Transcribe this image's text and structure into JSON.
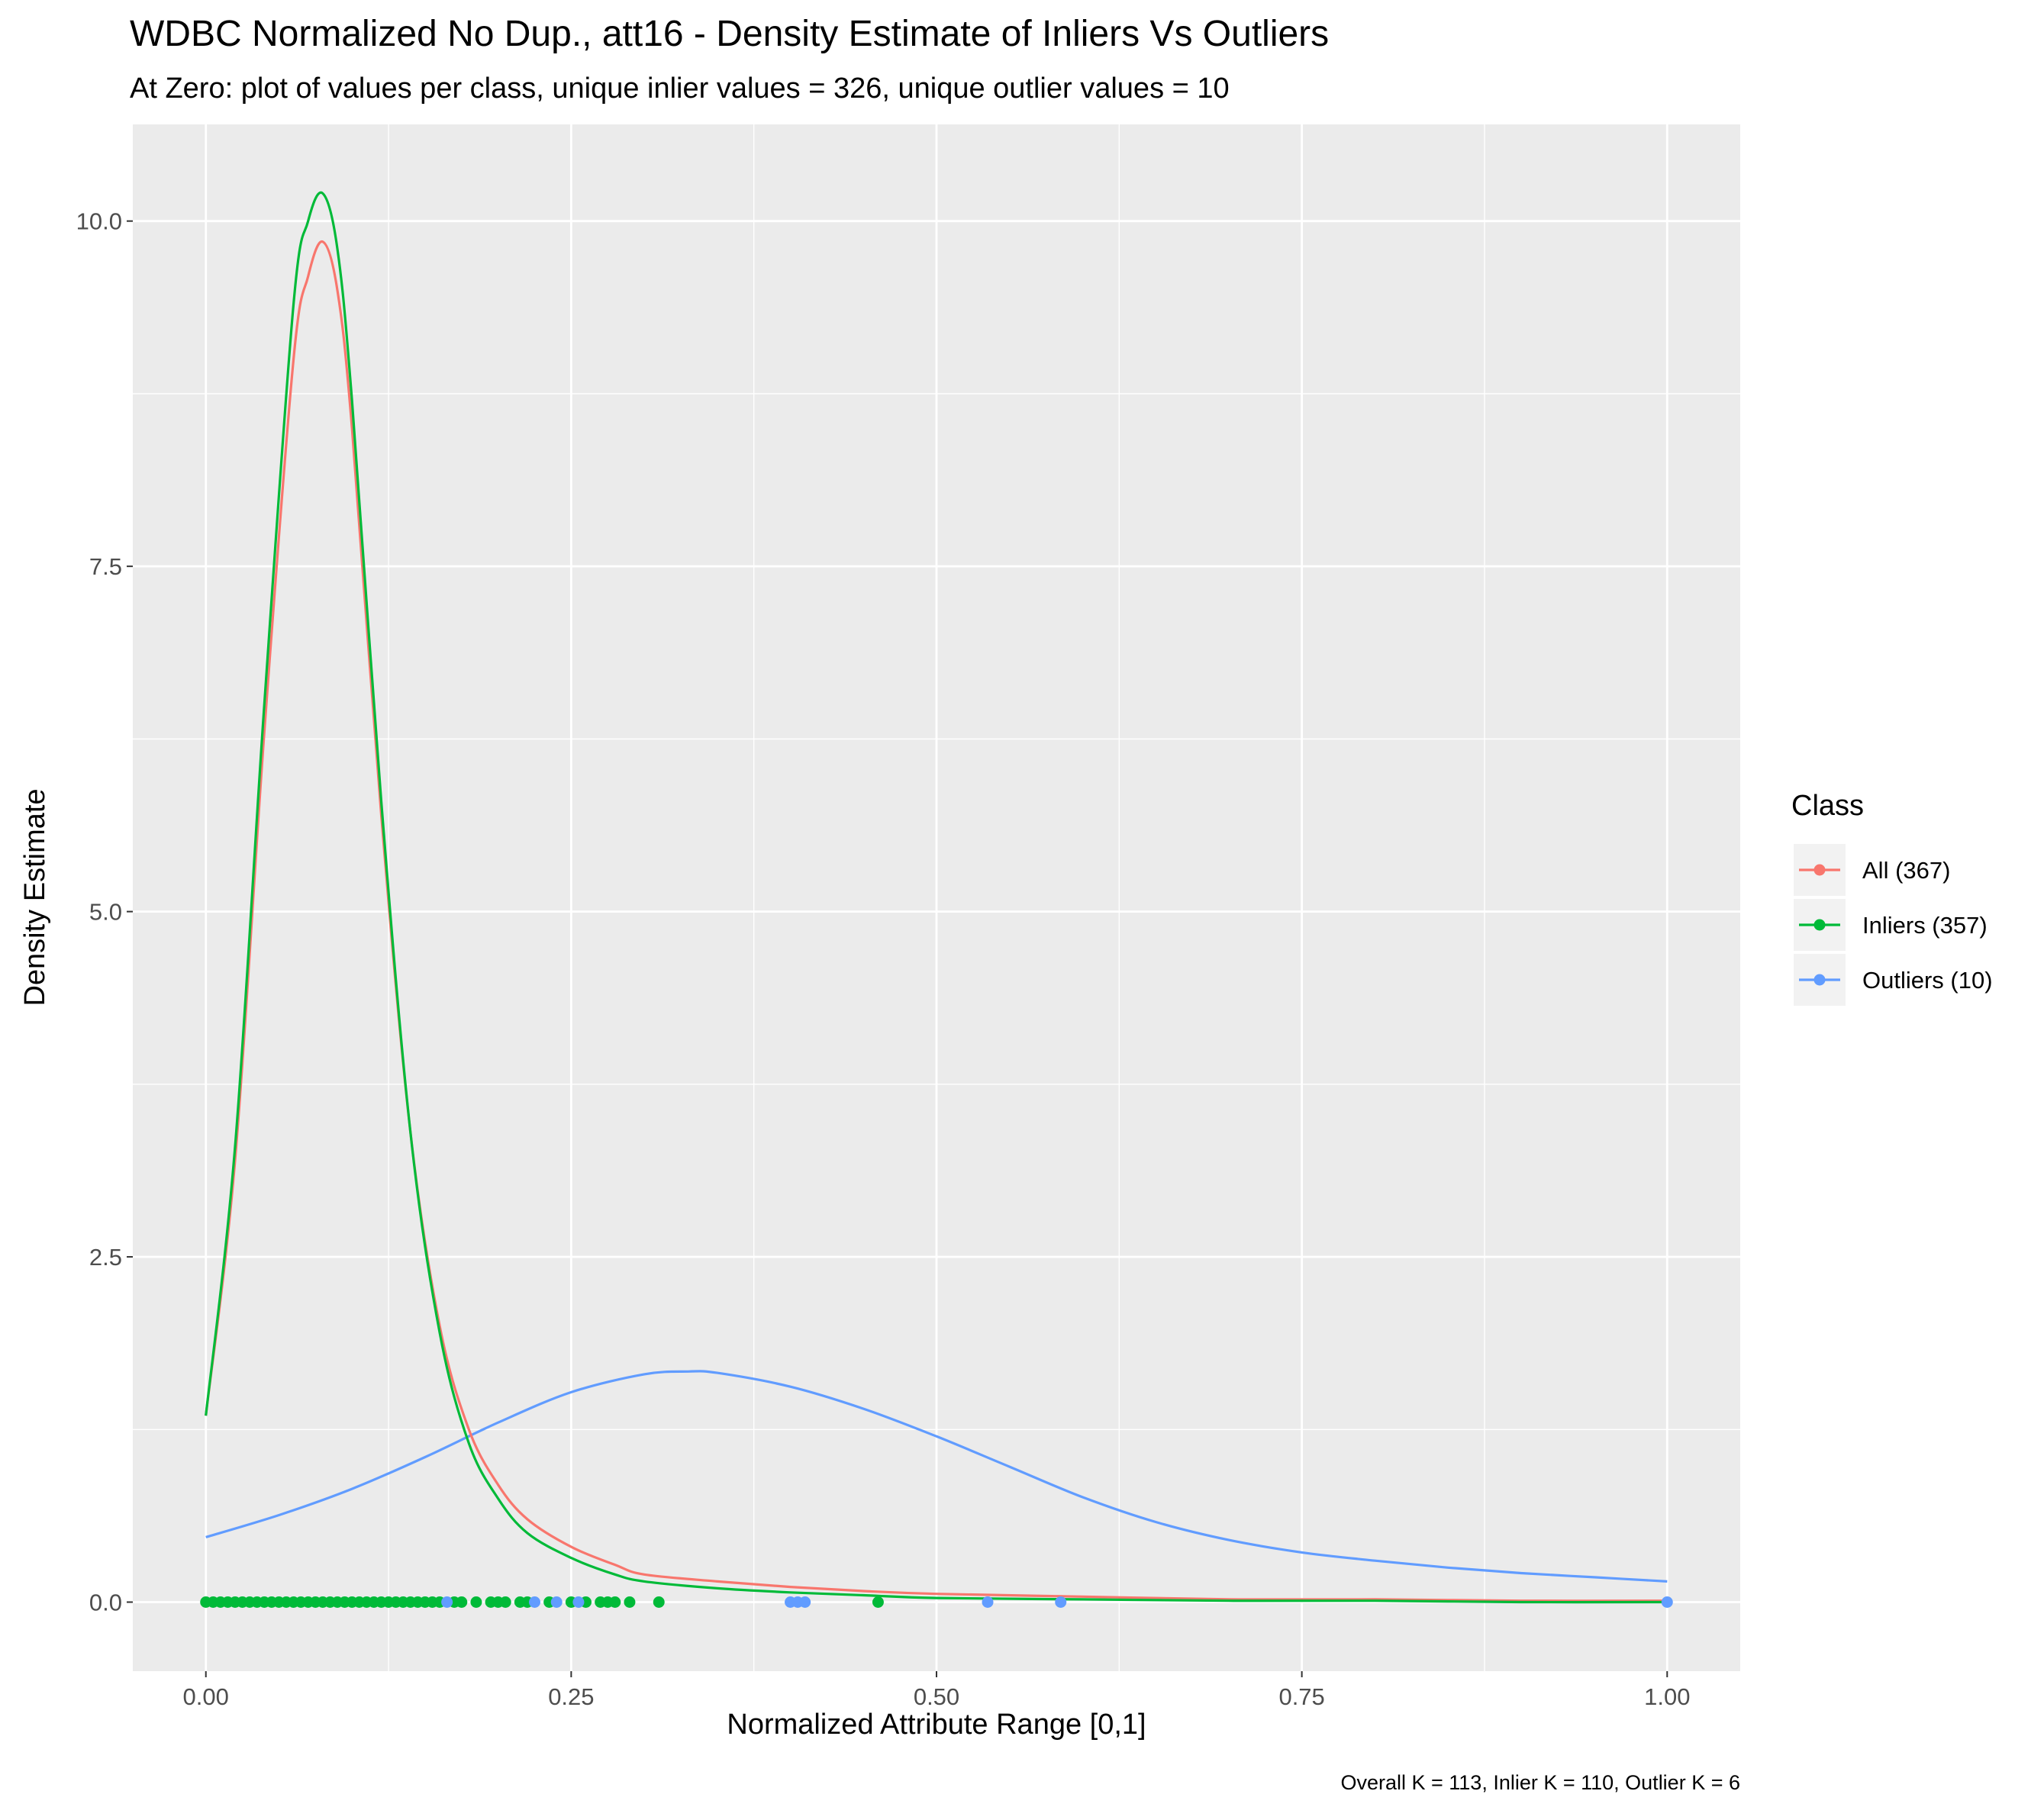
{
  "chart_data": {
    "type": "line",
    "title": "WDBC Normalized No Dup., att16 - Density Estimate of Inliers Vs Outliers",
    "subtitle": "At Zero: plot of values per class, unique inlier values = 326, unique outlier values = 10",
    "xlabel": "Normalized Attribute Range [0,1]",
    "ylabel": "Density Estimate",
    "caption": "Overall K = 113, Inlier K = 110, Outlier K = 6",
    "xlim": [
      -0.05,
      1.05
    ],
    "ylim": [
      -0.5,
      10.7
    ],
    "x_ticks": [
      0,
      0.25,
      0.5,
      0.75,
      1.0
    ],
    "x_tick_labels": [
      "0.00",
      "0.25",
      "0.50",
      "0.75",
      "1.00"
    ],
    "y_ticks": [
      0,
      2.5,
      5,
      7.5,
      10
    ],
    "y_tick_labels": [
      "0.0",
      "2.5",
      "5.0",
      "7.5",
      "10.0"
    ],
    "grid": true,
    "legend": {
      "title": "Class",
      "position": "right",
      "entries": [
        "All (367)",
        "Inliers (357)",
        "Outliers (10)"
      ]
    },
    "series": [
      {
        "name": "All (367)",
        "color": "#F8766D",
        "x": [
          0,
          0.02,
          0.04,
          0.06,
          0.07,
          0.08,
          0.09,
          0.1,
          0.12,
          0.14,
          0.16,
          0.18,
          0.2,
          0.22,
          0.25,
          0.28,
          0.3,
          0.35,
          0.4,
          0.45,
          0.5,
          0.6,
          0.7,
          0.8,
          0.9,
          1.0
        ],
        "y": [
          1.35,
          3.2,
          6.3,
          9.0,
          9.6,
          9.85,
          9.5,
          8.5,
          5.7,
          3.4,
          2.0,
          1.25,
          0.85,
          0.6,
          0.4,
          0.27,
          0.2,
          0.15,
          0.11,
          0.08,
          0.06,
          0.04,
          0.02,
          0.02,
          0.01,
          0.01
        ]
      },
      {
        "name": "Inliers (357)",
        "color": "#00BA38",
        "x": [
          0,
          0.02,
          0.04,
          0.06,
          0.07,
          0.08,
          0.09,
          0.1,
          0.12,
          0.14,
          0.16,
          0.18,
          0.2,
          0.22,
          0.25,
          0.28,
          0.3,
          0.35,
          0.4,
          0.45,
          0.5,
          0.6,
          0.7,
          0.8,
          0.9,
          1.0
        ],
        "y": [
          1.35,
          3.3,
          6.5,
          9.4,
          10.0,
          10.2,
          9.8,
          8.7,
          5.8,
          3.4,
          1.95,
          1.15,
          0.75,
          0.5,
          0.32,
          0.2,
          0.15,
          0.1,
          0.07,
          0.05,
          0.03,
          0.02,
          0.01,
          0.01,
          0.0,
          0.0
        ]
      },
      {
        "name": "Outliers (10)",
        "color": "#619CFF",
        "x": [
          0,
          0.05,
          0.1,
          0.15,
          0.2,
          0.25,
          0.3,
          0.33,
          0.35,
          0.4,
          0.45,
          0.5,
          0.55,
          0.6,
          0.65,
          0.7,
          0.75,
          0.8,
          0.85,
          0.9,
          0.95,
          1.0
        ],
        "y": [
          0.47,
          0.63,
          0.82,
          1.05,
          1.3,
          1.52,
          1.65,
          1.67,
          1.66,
          1.56,
          1.4,
          1.2,
          0.98,
          0.76,
          0.58,
          0.45,
          0.36,
          0.3,
          0.25,
          0.21,
          0.18,
          0.15
        ]
      }
    ],
    "points_at_zero": [
      {
        "name": "Inliers (357)",
        "color": "#00BA38",
        "x": [
          0,
          0.005,
          0.01,
          0.015,
          0.02,
          0.025,
          0.03,
          0.035,
          0.04,
          0.045,
          0.05,
          0.055,
          0.06,
          0.065,
          0.07,
          0.075,
          0.08,
          0.085,
          0.09,
          0.095,
          0.1,
          0.105,
          0.11,
          0.115,
          0.12,
          0.125,
          0.13,
          0.135,
          0.14,
          0.145,
          0.15,
          0.155,
          0.16,
          0.17,
          0.175,
          0.185,
          0.195,
          0.2,
          0.205,
          0.215,
          0.22,
          0.235,
          0.25,
          0.26,
          0.27,
          0.275,
          0.28,
          0.29,
          0.31,
          0.46
        ]
      },
      {
        "name": "Outliers (10)",
        "color": "#619CFF",
        "x": [
          0.165,
          0.225,
          0.24,
          0.255,
          0.4,
          0.405,
          0.41,
          0.535,
          0.585,
          1.0
        ]
      }
    ]
  }
}
